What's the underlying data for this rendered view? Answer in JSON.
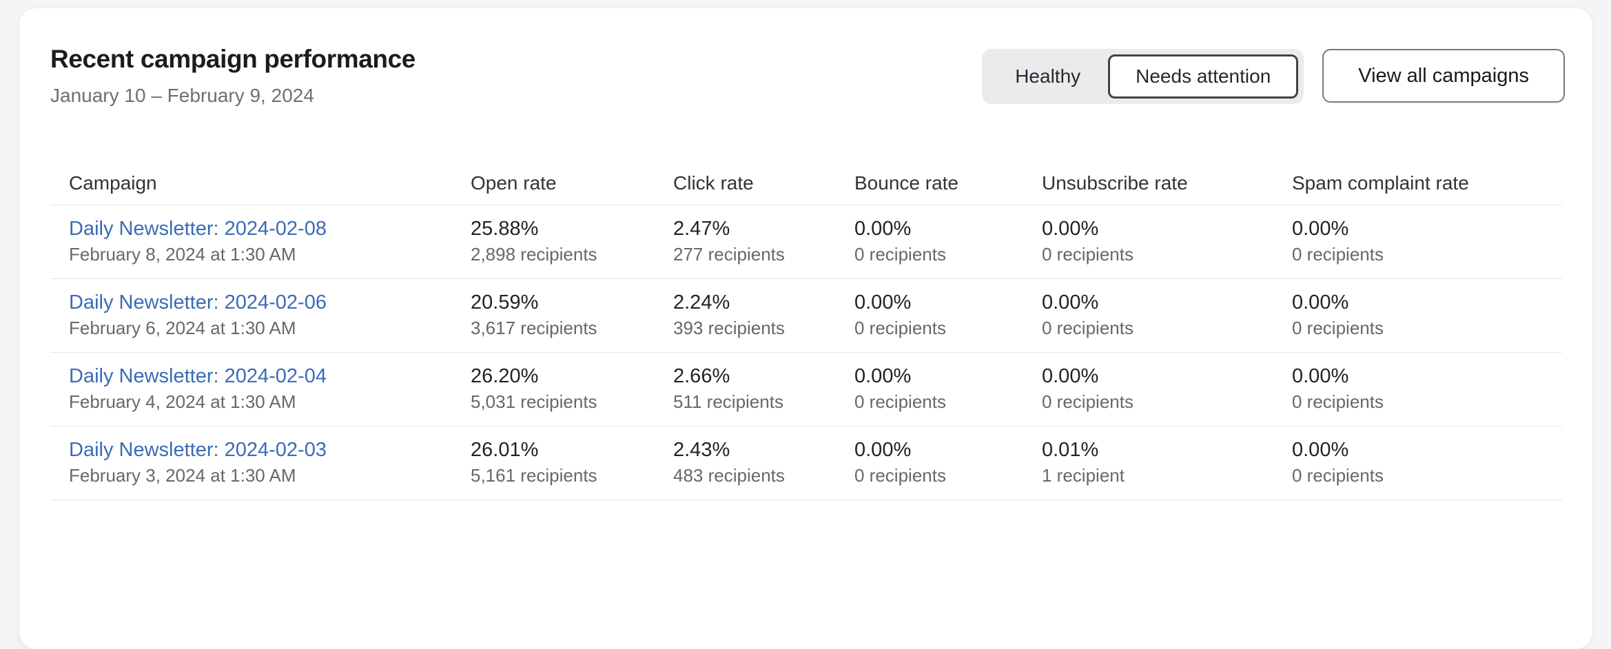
{
  "header": {
    "title": "Recent campaign performance",
    "date_range": "January 10 – February 9, 2024",
    "filters": {
      "healthy_label": "Healthy",
      "needs_attention_label": "Needs attention",
      "selected": "Needs attention"
    },
    "view_all_label": "View all campaigns"
  },
  "table": {
    "columns": [
      "Campaign",
      "Open rate",
      "Click rate",
      "Bounce rate",
      "Unsubscribe rate",
      "Spam complaint rate"
    ],
    "rows": [
      {
        "campaign": "Daily Newsletter: 2024-02-08",
        "sent": "February 8, 2024 at 1:30 AM",
        "open_rate": "25.88%",
        "open_recipients": "2,898 recipients",
        "click_rate": "2.47%",
        "click_recipients": "277 recipients",
        "bounce_rate": "0.00%",
        "bounce_recipients": "0 recipients",
        "unsubscribe_rate": "0.00%",
        "unsubscribe_recipients": "0 recipients",
        "spam_rate": "0.00%",
        "spam_recipients": "0 recipients"
      },
      {
        "campaign": "Daily Newsletter: 2024-02-06",
        "sent": "February 6, 2024 at 1:30 AM",
        "open_rate": "20.59%",
        "open_recipients": "3,617 recipients",
        "click_rate": "2.24%",
        "click_recipients": "393 recipients",
        "bounce_rate": "0.00%",
        "bounce_recipients": "0 recipients",
        "unsubscribe_rate": "0.00%",
        "unsubscribe_recipients": "0 recipients",
        "spam_rate": "0.00%",
        "spam_recipients": "0 recipients"
      },
      {
        "campaign": "Daily Newsletter: 2024-02-04",
        "sent": "February 4, 2024 at 1:30 AM",
        "open_rate": "26.20%",
        "open_recipients": "5,031 recipients",
        "click_rate": "2.66%",
        "click_recipients": "511 recipients",
        "bounce_rate": "0.00%",
        "bounce_recipients": "0 recipients",
        "unsubscribe_rate": "0.00%",
        "unsubscribe_recipients": "0 recipients",
        "spam_rate": "0.00%",
        "spam_recipients": "0 recipients"
      },
      {
        "campaign": "Daily Newsletter: 2024-02-03",
        "sent": "February 3, 2024 at 1:30 AM",
        "open_rate": "26.01%",
        "open_recipients": "5,161 recipients",
        "click_rate": "2.43%",
        "click_recipients": "483 recipients",
        "bounce_rate": "0.00%",
        "bounce_recipients": "0 recipients",
        "unsubscribe_rate": "0.01%",
        "unsubscribe_recipients": "1 recipient",
        "spam_rate": "0.00%",
        "spam_recipients": "0 recipients"
      }
    ]
  },
  "colors": {
    "page_background": "#f5f5f7",
    "card_background": "#ffffff",
    "link": "#3a6bb5",
    "primary_text": "#1f2226",
    "secondary_text": "#64686d",
    "divider": "#e5e5e8",
    "segmented_background": "#ebebee",
    "selected_filter_border": "#404346"
  }
}
